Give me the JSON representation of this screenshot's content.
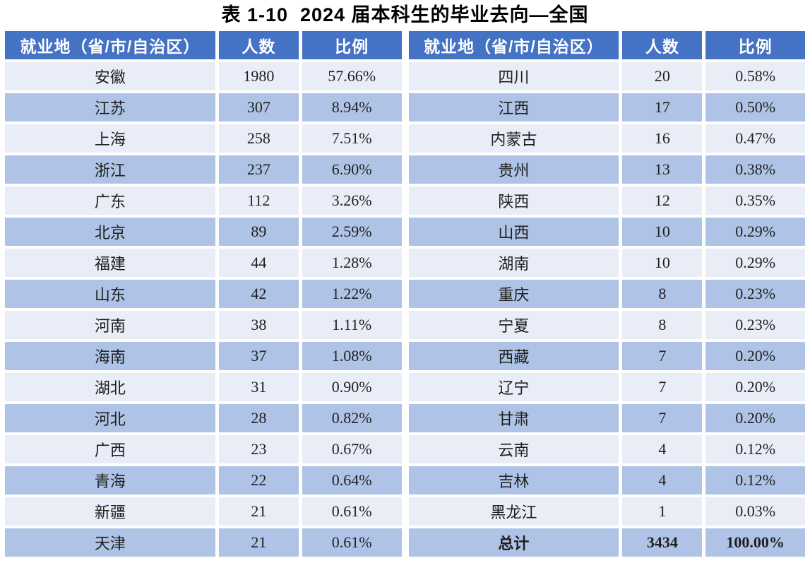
{
  "title": "表 1-10  2024 届本科生的毕业去向—全国",
  "headers": {
    "region": "就业地（省/市/自治区）",
    "count": "人数",
    "ratio": "比例"
  },
  "left_rows": [
    {
      "region": "安徽",
      "count": "1980",
      "ratio": "57.66%"
    },
    {
      "region": "江苏",
      "count": "307",
      "ratio": "8.94%"
    },
    {
      "region": "上海",
      "count": "258",
      "ratio": "7.51%"
    },
    {
      "region": "浙江",
      "count": "237",
      "ratio": "6.90%"
    },
    {
      "region": "广东",
      "count": "112",
      "ratio": "3.26%"
    },
    {
      "region": "北京",
      "count": "89",
      "ratio": "2.59%"
    },
    {
      "region": "福建",
      "count": "44",
      "ratio": "1.28%"
    },
    {
      "region": "山东",
      "count": "42",
      "ratio": "1.22%"
    },
    {
      "region": "河南",
      "count": "38",
      "ratio": "1.11%"
    },
    {
      "region": "海南",
      "count": "37",
      "ratio": "1.08%"
    },
    {
      "region": "湖北",
      "count": "31",
      "ratio": "0.90%"
    },
    {
      "region": "河北",
      "count": "28",
      "ratio": "0.82%"
    },
    {
      "region": "广西",
      "count": "23",
      "ratio": "0.67%"
    },
    {
      "region": "青海",
      "count": "22",
      "ratio": "0.64%"
    },
    {
      "region": "新疆",
      "count": "21",
      "ratio": "0.61%"
    },
    {
      "region": "天津",
      "count": "21",
      "ratio": "0.61%"
    }
  ],
  "right_rows": [
    {
      "region": "四川",
      "count": "20",
      "ratio": "0.58%"
    },
    {
      "region": "江西",
      "count": "17",
      "ratio": "0.50%"
    },
    {
      "region": "内蒙古",
      "count": "16",
      "ratio": "0.47%"
    },
    {
      "region": "贵州",
      "count": "13",
      "ratio": "0.38%"
    },
    {
      "region": "陕西",
      "count": "12",
      "ratio": "0.35%"
    },
    {
      "region": "山西",
      "count": "10",
      "ratio": "0.29%"
    },
    {
      "region": "湖南",
      "count": "10",
      "ratio": "0.29%"
    },
    {
      "region": "重庆",
      "count": "8",
      "ratio": "0.23%"
    },
    {
      "region": "宁夏",
      "count": "8",
      "ratio": "0.23%"
    },
    {
      "region": "西藏",
      "count": "7",
      "ratio": "0.20%"
    },
    {
      "region": "辽宁",
      "count": "7",
      "ratio": "0.20%"
    },
    {
      "region": "甘肃",
      "count": "7",
      "ratio": "0.20%"
    },
    {
      "region": "云南",
      "count": "4",
      "ratio": "0.12%"
    },
    {
      "region": "吉林",
      "count": "4",
      "ratio": "0.12%"
    },
    {
      "region": "黑龙江",
      "count": "1",
      "ratio": "0.03%"
    },
    {
      "region": "总计",
      "count": "3434",
      "ratio": "100.00%",
      "bold": true
    }
  ],
  "colors": {
    "header_bg": "#4472C4",
    "band_light": "#E9EDF8",
    "band_dark": "#AFC3E6",
    "header_text": "#FFFFFF",
    "cell_text": "#1F1F1F"
  }
}
